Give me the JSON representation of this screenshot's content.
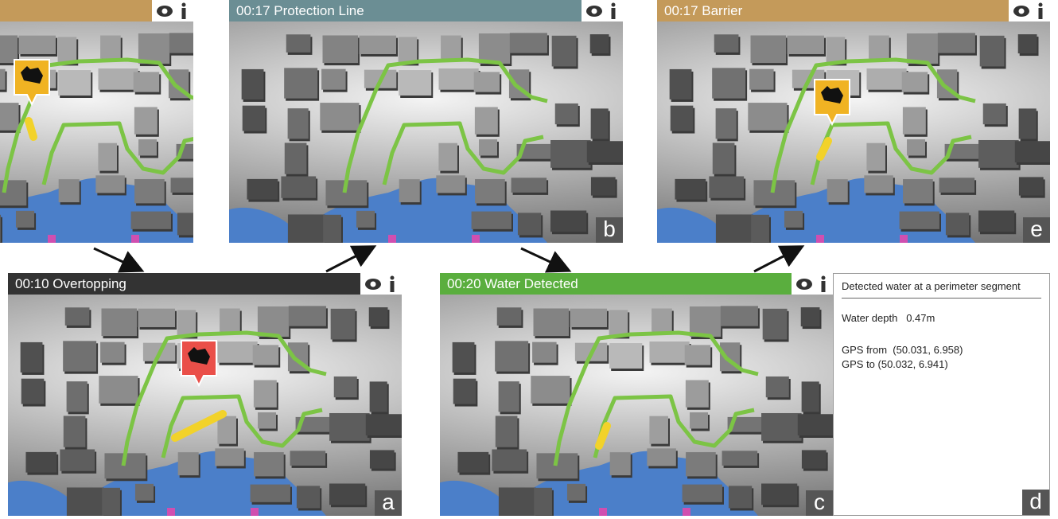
{
  "panels": [
    {
      "letter": "b",
      "title": "00:17 Protection Line"
    },
    {
      "letter": "e",
      "title": "00:17 Barrier"
    },
    {
      "letter": "a",
      "title": "00:10 Overtopping"
    },
    {
      "letter": "c",
      "title": "00:20 Water Detected"
    }
  ],
  "info": {
    "letter": "d",
    "heading": "Detected water at a perimeter segment",
    "depth_label": "Water depth",
    "depth_value": "0.47m",
    "gps_from": "GPS from  (50.031, 6.958)",
    "gps_to": "GPS to (50.032, 6.941)"
  }
}
